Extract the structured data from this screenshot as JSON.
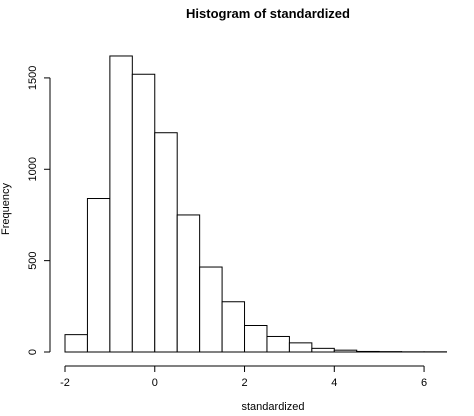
{
  "chart_data": {
    "type": "bar",
    "title": "Histogram of standardized",
    "xlabel": "standardized",
    "ylabel": "Frequency",
    "bin_edges": [
      -2,
      -1.5,
      -1,
      -0.5,
      0,
      0.5,
      1,
      1.5,
      2,
      2.5,
      3,
      3.5,
      4,
      4.5,
      5,
      5.5,
      6,
      6.5
    ],
    "values": [
      95,
      840,
      1620,
      1520,
      1200,
      750,
      465,
      275,
      145,
      85,
      50,
      20,
      10,
      3,
      2,
      1,
      1
    ],
    "xlim": [
      -2,
      6.5
    ],
    "ylim": [
      0,
      1650
    ],
    "x_ticks": [
      -2,
      0,
      2,
      4,
      6
    ],
    "x_tick_labels": [
      "-2",
      "0",
      "2",
      "4",
      "6"
    ],
    "y_ticks": [
      0,
      500,
      1000,
      1500
    ],
    "y_tick_labels": [
      "0",
      "500",
      "1000",
      "1500"
    ],
    "grid": false,
    "bar_fill": "#ffffff",
    "bar_stroke": "#000000"
  }
}
